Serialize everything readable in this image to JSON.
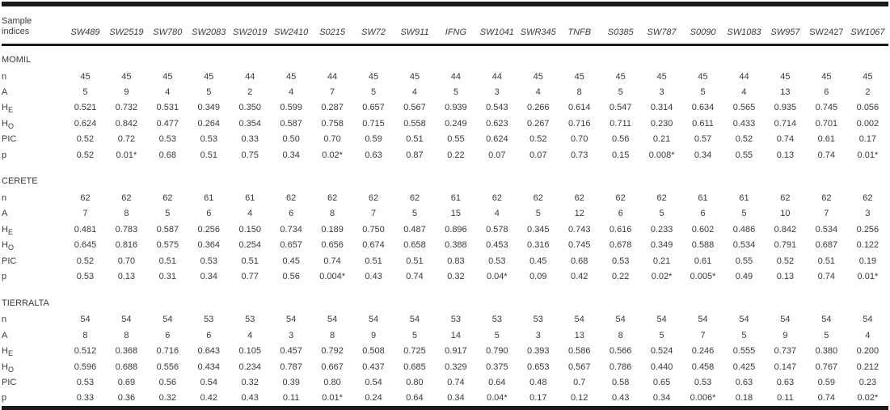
{
  "header": {
    "label_line1": "Sample",
    "label_line2": "indices",
    "columns": [
      {
        "name": "SW489",
        "italic": true
      },
      {
        "name": "SW2519",
        "italic": true
      },
      {
        "name": "SW780",
        "italic": true
      },
      {
        "name": "SW2083",
        "italic": true
      },
      {
        "name": "SW2019",
        "italic": true
      },
      {
        "name": "SW2410",
        "italic": true
      },
      {
        "name": "S0215",
        "italic": true
      },
      {
        "name": "SW72",
        "italic": true
      },
      {
        "name": "SW911",
        "italic": true
      },
      {
        "name": "IFNG",
        "italic": true
      },
      {
        "name": "SW1041",
        "italic": true
      },
      {
        "name": "SWR345",
        "italic": true
      },
      {
        "name": "TNFB",
        "italic": true
      },
      {
        "name": "S0385",
        "italic": true
      },
      {
        "name": "SW787",
        "italic": true
      },
      {
        "name": "S0090",
        "italic": true
      },
      {
        "name": "SW1083",
        "italic": true
      },
      {
        "name": "SW957",
        "italic": true
      },
      {
        "name": "SW2427",
        "italic": false
      },
      {
        "name": "SW1067",
        "italic": true
      }
    ]
  },
  "sections": [
    {
      "title": "MOMIL",
      "rows": [
        {
          "label": "n",
          "sub": "",
          "values": [
            "45",
            "45",
            "45",
            "45",
            "44",
            "45",
            "44",
            "45",
            "45",
            "44",
            "44",
            "45",
            "45",
            "45",
            "45",
            "45",
            "44",
            "45",
            "45",
            "45"
          ]
        },
        {
          "label": "A",
          "sub": "",
          "values": [
            "5",
            "9",
            "4",
            "5",
            "2",
            "4",
            "7",
            "5",
            "4",
            "5",
            "3",
            "4",
            "8",
            "5",
            "3",
            "5",
            "4",
            "13",
            "6",
            "2"
          ]
        },
        {
          "label": "H",
          "sub": "E",
          "values": [
            "0.521",
            "0.732",
            "0.531",
            "0.349",
            "0.350",
            "0.599",
            "0.287",
            "0.657",
            "0.567",
            "0.939",
            "0.543",
            "0.266",
            "0.614",
            "0.547",
            "0.314",
            "0.634",
            "0.565",
            "0.935",
            "0.745",
            "0.056"
          ]
        },
        {
          "label": "H",
          "sub": "O",
          "values": [
            "0.624",
            "0.842",
            "0.477",
            "0.264",
            "0.354",
            "0.587",
            "0.758",
            "0.715",
            "0.558",
            "0.249",
            "0.623",
            "0.267",
            "0.716",
            "0.711",
            "0.230",
            "0.611",
            "0.433",
            "0.714",
            "0.701",
            "0.002"
          ]
        },
        {
          "label": "PIC",
          "sub": "",
          "values": [
            "0.52",
            "0.72",
            "0.53",
            "0.53",
            "0.33",
            "0.50",
            "0.70",
            "0.59",
            "0.51",
            "0.55",
            "0.624",
            "0.52",
            "0.70",
            "0.56",
            "0.21",
            "0.57",
            "0.52",
            "0.74",
            "0.61",
            "0.17"
          ]
        },
        {
          "label": "p",
          "sub": "",
          "values": [
            "0.52",
            "0.01*",
            "0.68",
            "0.51",
            "0.75",
            "0.34",
            "0.02*",
            "0.63",
            "0.87",
            "0.22",
            "0.07",
            "0.07",
            "0.73",
            "0.15",
            "0.008*",
            "0.34",
            "0.55",
            "0.13",
            "0.74",
            "0.01*"
          ]
        }
      ]
    },
    {
      "title": "CERETE",
      "rows": [
        {
          "label": "n",
          "sub": "",
          "values": [
            "62",
            "62",
            "62",
            "61",
            "61",
            "62",
            "62",
            "62",
            "62",
            "61",
            "62",
            "62",
            "62",
            "62",
            "62",
            "61",
            "61",
            "62",
            "62",
            "62"
          ]
        },
        {
          "label": "A",
          "sub": "",
          "values": [
            "7",
            "8",
            "5",
            "6",
            "4",
            "6",
            "8",
            "7",
            "5",
            "15",
            "4",
            "5",
            "12",
            "6",
            "5",
            "6",
            "5",
            "10",
            "7",
            "3"
          ]
        },
        {
          "label": "H",
          "sub": "E",
          "values": [
            "0.481",
            "0.783",
            "0.587",
            "0.256",
            "0.150",
            "0.734",
            "0.189",
            "0.750",
            "0.487",
            "0.896",
            "0.578",
            "0.345",
            "0.743",
            "0.616",
            "0.233",
            "0.602",
            "0.486",
            "0.842",
            "0.534",
            "0.256"
          ]
        },
        {
          "label": "H",
          "sub": "O",
          "values": [
            "0.645",
            "0.816",
            "0.575",
            "0.364",
            "0.254",
            "0.657",
            "0.656",
            "0.674",
            "0.658",
            "0.388",
            "0.453",
            "0.316",
            "0.745",
            "0.678",
            "0.349",
            "0.588",
            "0.534",
            "0.791",
            "0.687",
            "0.122"
          ]
        },
        {
          "label": "PIC",
          "sub": "",
          "values": [
            "0.52",
            "0.70",
            "0.51",
            "0.53",
            "0.51",
            "0.45",
            "0.74",
            "0.51",
            "0.51",
            "0.83",
            "0.53",
            "0.45",
            "0.68",
            "0.53",
            "0.21",
            "0.61",
            "0.55",
            "0.52",
            "0.51",
            "0.19"
          ]
        },
        {
          "label": "p",
          "sub": "",
          "values": [
            "0.53",
            "0.13",
            "0.31",
            "0.34",
            "0.77",
            "0.56",
            "0.004*",
            "0.43",
            "0.74",
            "0.32",
            "0.04*",
            "0.09",
            "0.42",
            "0.22",
            "0.02*",
            "0.005*",
            "0.49",
            "0.13",
            "0.74",
            "0.01*"
          ]
        }
      ]
    },
    {
      "title": "TIERRALTA",
      "rows": [
        {
          "label": "n",
          "sub": "",
          "values": [
            "54",
            "54",
            "54",
            "53",
            "53",
            "54",
            "54",
            "54",
            "54",
            "53",
            "53",
            "53",
            "54",
            "54",
            "54",
            "54",
            "54",
            "54",
            "54",
            "54"
          ]
        },
        {
          "label": "A",
          "sub": "",
          "values": [
            "8",
            "8",
            "6",
            "6",
            "4",
            "3",
            "8",
            "9",
            "5",
            "14",
            "5",
            "3",
            "13",
            "8",
            "5",
            "7",
            "5",
            "9",
            "5",
            "4"
          ]
        },
        {
          "label": "H",
          "sub": "E",
          "values": [
            "0.512",
            "0.368",
            "0.716",
            "0.643",
            "0.105",
            "0.457",
            "0.792",
            "0.508",
            "0.725",
            "0.917",
            "0.790",
            "0.393",
            "0.586",
            "0.566",
            "0.524",
            "0.246",
            "0.555",
            "0.737",
            "0.380",
            "0.200"
          ]
        },
        {
          "label": "H",
          "sub": "O",
          "values": [
            "0.596",
            "0.688",
            "0.556",
            "0.434",
            "0.234",
            "0.787",
            "0.667",
            "0.437",
            "0.685",
            "0.329",
            "0.375",
            "0.653",
            "0.567",
            "0.786",
            "0.440",
            "0.458",
            "0.425",
            "0.147",
            "0.767",
            "0.212"
          ]
        },
        {
          "label": "PIC",
          "sub": "",
          "values": [
            "0.53",
            "0.69",
            "0.56",
            "0.54",
            "0.32",
            "0.39",
            "0.80",
            "0.54",
            "0.80",
            "0.74",
            "0.64",
            "0.48",
            "0.7",
            "0.58",
            "0.65",
            "0.53",
            "0.63",
            "0.63",
            "0.59",
            "0.23"
          ]
        },
        {
          "label": "p",
          "sub": "",
          "values": [
            "0.33",
            "0.36",
            "0.32",
            "0.42",
            "0.43",
            "0.11",
            "0.01*",
            "0.24",
            "0.64",
            "0.34",
            "0.04*",
            "0.17",
            "0.12",
            "0.43",
            "0.34",
            "0.006*",
            "0.18",
            "0.11",
            "0.74",
            "0.02*"
          ]
        }
      ]
    }
  ]
}
